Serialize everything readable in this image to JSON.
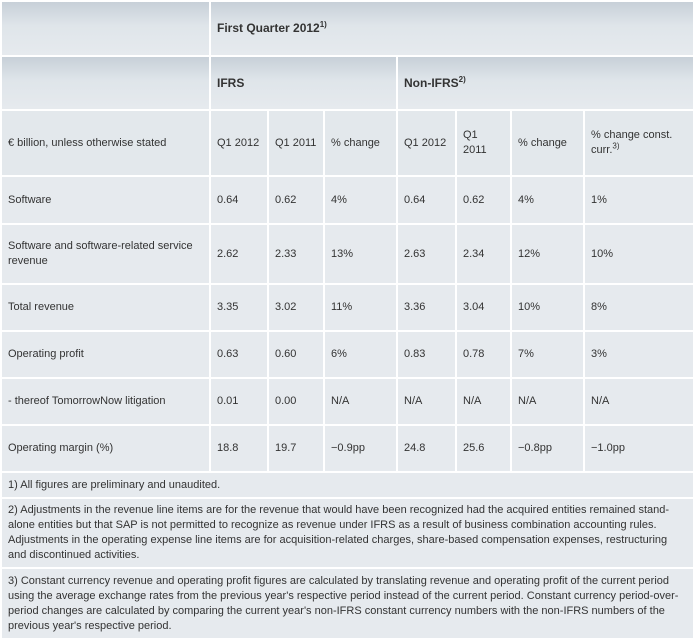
{
  "header": {
    "period": "First Quarter 2012",
    "period_note": "1)",
    "ifrs": "IFRS",
    "non_ifrs": "Non-IFRS",
    "non_ifrs_note": "2)"
  },
  "columns": {
    "unit": "€ billion, unless otherwise stated",
    "ifrs_q1_2012": "Q1 2012",
    "ifrs_q1_2011": "Q1 2011",
    "ifrs_change": "% change",
    "nonifrs_q1_2012": "Q1 2012",
    "nonifrs_q1_2011": "Q1 2011",
    "nonifrs_change": "% change",
    "const_curr": "% change const. curr.",
    "const_curr_note": "3)"
  },
  "rows": [
    {
      "label": "Software",
      "values": [
        "0.64",
        "0.62",
        "4%",
        "0.64",
        "0.62",
        "4%",
        "1%"
      ]
    },
    {
      "label": "Software and software-related service revenue",
      "values": [
        "2.62",
        "2.33",
        "13%",
        "2.63",
        "2.34",
        "12%",
        "10%"
      ]
    },
    {
      "label": "Total revenue",
      "values": [
        "3.35",
        "3.02",
        "11%",
        "3.36",
        "3.04",
        "10%",
        "8%"
      ]
    },
    {
      "label": "Operating profit",
      "values": [
        "0.63",
        "0.60",
        "6%",
        "0.83",
        "0.78",
        "7%",
        "3%"
      ]
    },
    {
      "label": "- thereof TomorrowNow litigation",
      "values": [
        "0.01",
        "0.00",
        "N/A",
        "N/A",
        "N/A",
        "N/A",
        "N/A"
      ]
    },
    {
      "label": "Operating margin (%)",
      "values": [
        "18.8",
        "19.7",
        "−0.9pp",
        "24.8",
        "25.6",
        "−0.8pp",
        "−1.0pp"
      ]
    }
  ],
  "footnotes": [
    "1) All figures are preliminary and unaudited.",
    "2) Adjustments in the revenue line items are for the revenue that would have been recognized had the acquired entities remained stand-alone entities but that SAP is not permitted to recognize as revenue under IFRS as a result of business combination accounting rules. Adjustments in the operating expense line items are for acquisition-related charges, share-based compensation expenses, restructuring and discontinued activities.",
    "3) Constant currency revenue and operating profit figures are calculated by translating revenue and operating profit of the current period using the average exchange rates from the previous year's respective period instead of the current period. Constant currency period-over-period changes are calculated by comparing the current year's non-IFRS constant currency numbers with the non-IFRS numbers of the previous year's respective period."
  ]
}
